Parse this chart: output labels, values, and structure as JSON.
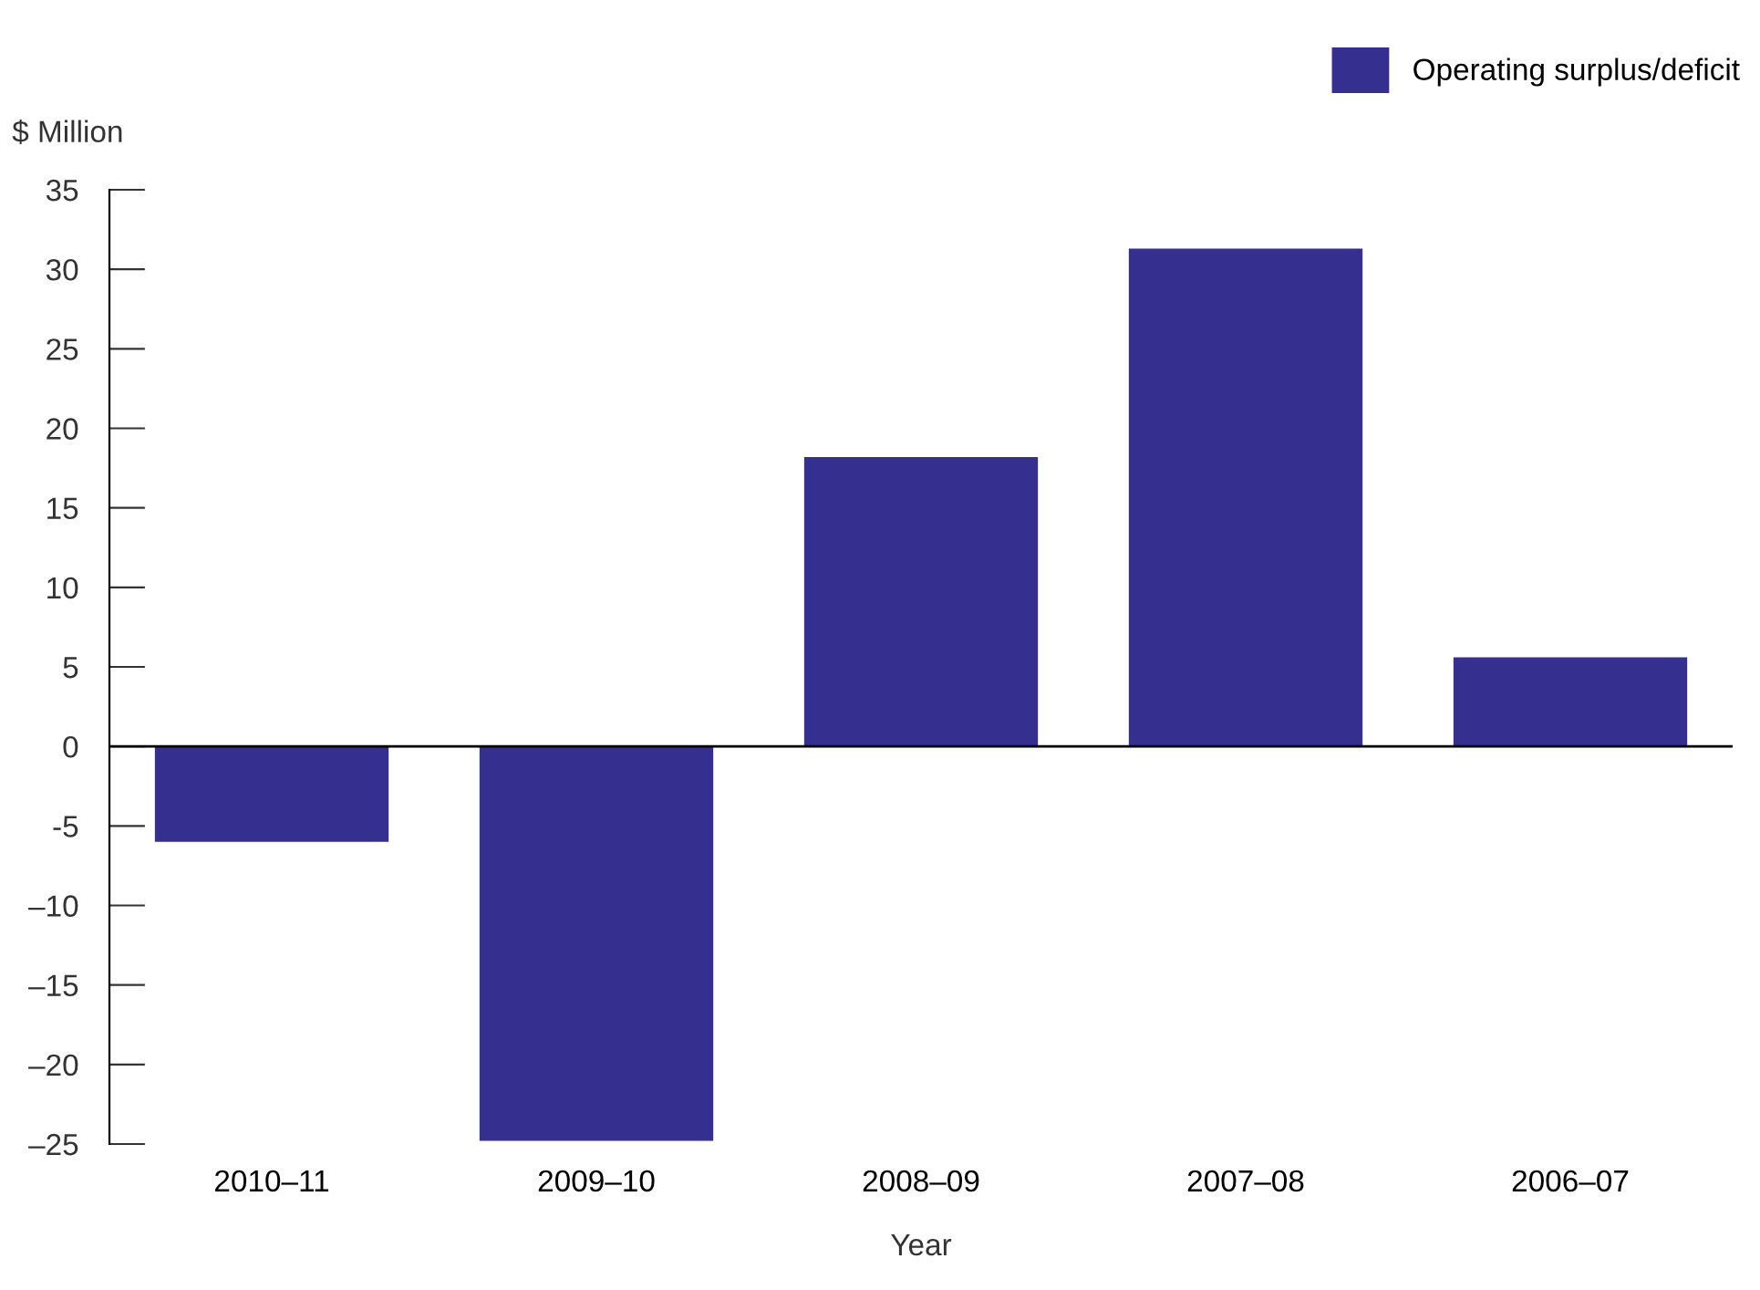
{
  "chart_data": {
    "type": "bar",
    "xlabel": "Year",
    "ylabel": "$ Million",
    "categories": [
      "2010–11",
      "2009–10",
      "2008–09",
      "2007–08",
      "2006–07"
    ],
    "series": [
      {
        "name": "Operating surplus/deficit",
        "color": "#35308f",
        "values": [
          -6,
          -24.8,
          18.2,
          31.3,
          5.6
        ]
      }
    ],
    "ylim": [
      -25,
      35
    ],
    "yticks": [
      {
        "value": -25,
        "label": "–25"
      },
      {
        "value": -20,
        "label": "–20"
      },
      {
        "value": -15,
        "label": "–15"
      },
      {
        "value": -10,
        "label": "–10"
      },
      -5,
      0,
      5,
      10,
      15,
      20,
      25,
      30,
      35
    ],
    "legend": "top right"
  }
}
